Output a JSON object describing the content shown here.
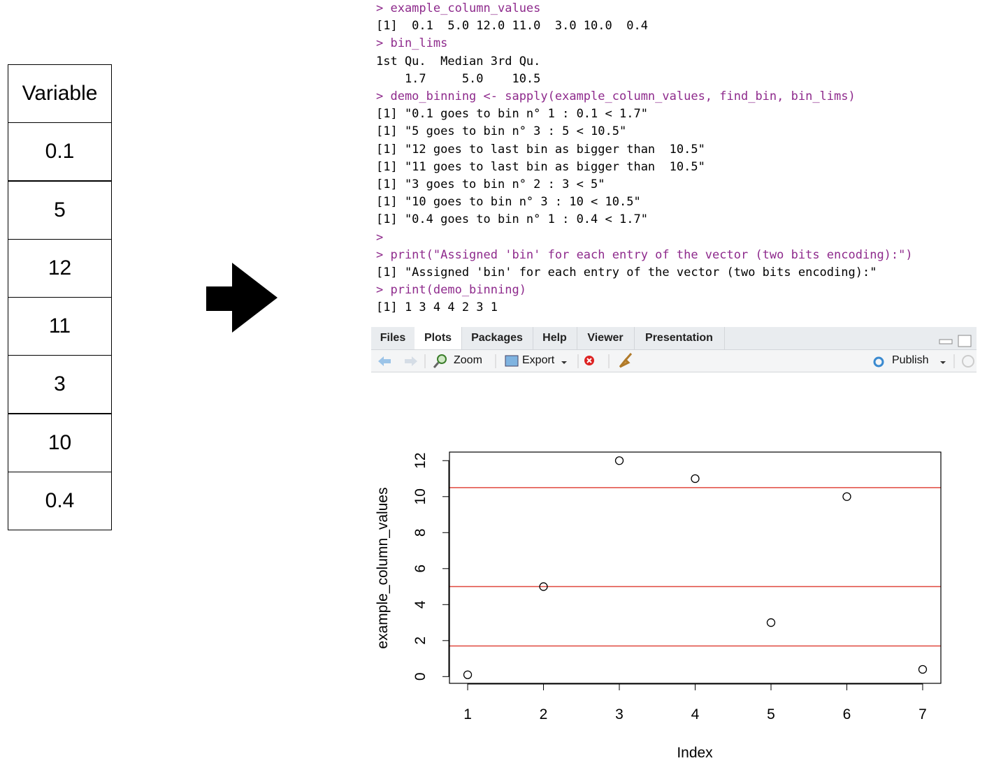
{
  "table": {
    "header": "Variable",
    "rows": [
      "0.1",
      "5",
      "12",
      "11",
      "3",
      "10",
      "0.4"
    ]
  },
  "console": {
    "lines": [
      {
        "text": "> example_column_values",
        "input": true
      },
      {
        "text": "[1]  0.1  5.0 12.0 11.0  3.0 10.0  0.4",
        "input": false
      },
      {
        "text": "> bin_lims",
        "input": true
      },
      {
        "text": "1st Qu.  Median 3rd Qu. ",
        "input": false
      },
      {
        "text": "    1.7     5.0    10.5 ",
        "input": false
      },
      {
        "text": "> demo_binning <- sapply(example_column_values, find_bin, bin_lims)",
        "input": true
      },
      {
        "text": "[1] \"0.1 goes to bin n° 1 : 0.1 < 1.7\"",
        "input": false
      },
      {
        "text": "[1] \"5 goes to bin n° 3 : 5 < 10.5\"",
        "input": false
      },
      {
        "text": "[1] \"12 goes to last bin as bigger than  10.5\"",
        "input": false
      },
      {
        "text": "[1] \"11 goes to last bin as bigger than  10.5\"",
        "input": false
      },
      {
        "text": "[1] \"3 goes to bin n° 2 : 3 < 5\"",
        "input": false
      },
      {
        "text": "[1] \"10 goes to bin n° 3 : 10 < 10.5\"",
        "input": false
      },
      {
        "text": "[1] \"0.4 goes to bin n° 1 : 0.4 < 1.7\"",
        "input": false
      },
      {
        "text": ">",
        "input": true
      },
      {
        "text": "> print(\"Assigned 'bin' for each entry of the vector (two bits encoding):\")",
        "input": true
      },
      {
        "text": "[1] \"Assigned 'bin' for each entry of the vector (two bits encoding):\"",
        "input": false
      },
      {
        "text": "> print(demo_binning)",
        "input": true
      },
      {
        "text": "[1] 1 3 4 4 2 3 1",
        "input": false
      }
    ]
  },
  "tabs": {
    "items": [
      "Files",
      "Plots",
      "Packages",
      "Help",
      "Viewer",
      "Presentation"
    ],
    "active": 1
  },
  "toolbar": {
    "zoom": "Zoom",
    "export": "Export",
    "publish": "Publish"
  },
  "chart_data": {
    "type": "scatter",
    "x": [
      1,
      2,
      3,
      4,
      5,
      6,
      7
    ],
    "values": [
      0.1,
      5,
      12,
      11,
      3,
      10,
      0.4
    ],
    "xlabel": "Index",
    "ylabel": "example_column_values",
    "xlim": [
      0.76,
      7.24
    ],
    "ylim": [
      -0.376,
      12.476
    ],
    "xticks": [
      1,
      2,
      3,
      4,
      5,
      6,
      7
    ],
    "yticks": [
      0,
      2,
      4,
      6,
      8,
      10,
      12
    ],
    "hlines": [
      1.7,
      5,
      10.5
    ],
    "color": "#000000",
    "hline_color": "#e0483e"
  }
}
